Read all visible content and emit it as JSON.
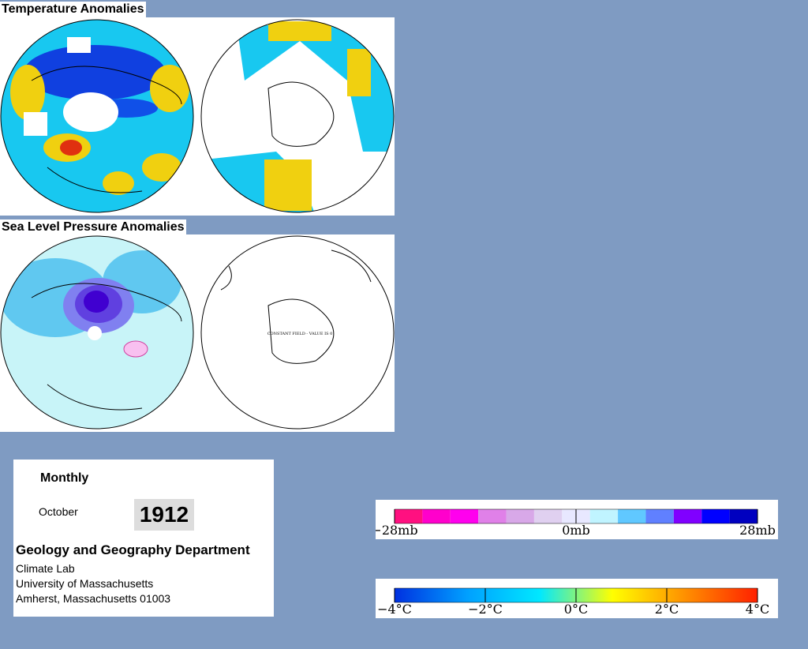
{
  "temperature_title": "Temperature Anomalies",
  "pressure_title": "Sea Level Pressure Anomalies",
  "map_note": "CONSTANT FIELD - VALUE IS 0",
  "info": {
    "period": "Monthly",
    "month": "October",
    "year": "1912",
    "department": "Geology and Geography Department",
    "lines": [
      "Climate Lab",
      "University of Massachusetts",
      "Amherst, Massachusetts 01003"
    ]
  },
  "pressure_scale": {
    "labels": [
      "−28mb",
      "0mb",
      "28mb"
    ],
    "colors": [
      "#ff1080",
      "#ff00cc",
      "#ff00ee",
      "#e080e8",
      "#d8a8e8",
      "#e0d0f0",
      "#e8e8ff",
      "#c0f4ff",
      "#60c8ff",
      "#6080ff",
      "#8000ff",
      "#0000ff",
      "#0000c0"
    ]
  },
  "temperature_scale": {
    "labels": [
      "−4°C",
      "−2°C",
      "0°C",
      "2°C",
      "4°C"
    ],
    "colors": [
      "#0030e0",
      "#00a0ff",
      "#00e8ff",
      "#ffff00",
      "#ff9000",
      "#ff2000"
    ]
  }
}
